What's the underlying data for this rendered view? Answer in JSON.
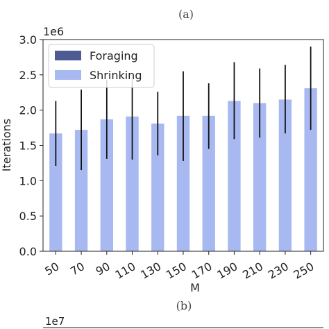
{
  "figure": {
    "caption_top": "(a)",
    "caption_bottom": "(b)",
    "next_panel_exponent": "1e7"
  },
  "chart_data": {
    "type": "bar",
    "title": "",
    "xlabel": "M",
    "ylabel": "Iterations",
    "y_exponent_label": "1e6",
    "ylim": [
      0,
      3.0
    ],
    "yticks": [
      0.0,
      0.5,
      1.0,
      1.5,
      2.0,
      2.5,
      3.0
    ],
    "ytick_labels": [
      "0.0",
      "0.5",
      "1.0",
      "1.5",
      "2.0",
      "2.5",
      "3.0"
    ],
    "categories": [
      "50",
      "70",
      "90",
      "110",
      "130",
      "150",
      "170",
      "190",
      "210",
      "230",
      "250"
    ],
    "legend_position": "top-left",
    "grid": false,
    "series": [
      {
        "name": "Foraging",
        "color": "#4f5b93",
        "values": [
          0,
          0,
          0,
          0,
          0,
          0,
          0,
          0,
          0,
          0,
          0
        ]
      },
      {
        "name": "Shrinking",
        "color": "#a8b9f1",
        "values": [
          1.67,
          1.72,
          1.87,
          1.91,
          1.81,
          1.92,
          1.92,
          2.13,
          2.1,
          2.15,
          2.31
        ],
        "error_low": [
          1.21,
          1.15,
          1.31,
          1.3,
          1.36,
          1.28,
          1.45,
          1.59,
          1.61,
          1.67,
          1.72
        ],
        "error_high": [
          2.13,
          2.29,
          2.43,
          2.44,
          2.26,
          2.55,
          2.38,
          2.68,
          2.59,
          2.64,
          2.9
        ]
      }
    ]
  }
}
